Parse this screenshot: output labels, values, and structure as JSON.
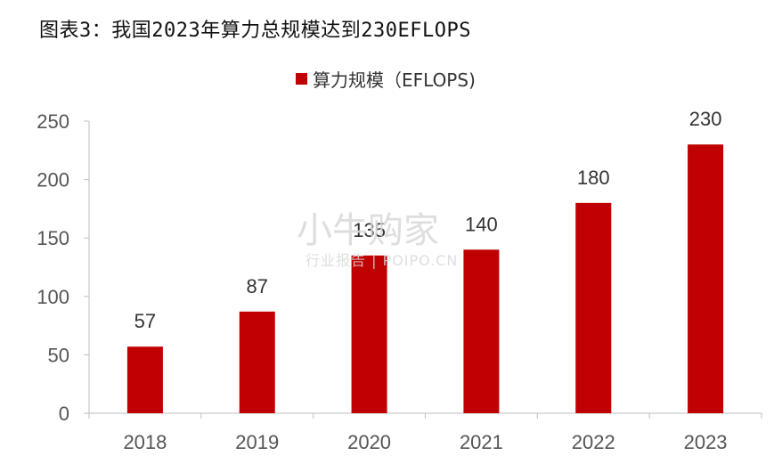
{
  "figure_title": "图表3：我国2023年算力总规模达到230EFLOPS",
  "watermark": {
    "main": "小牛购家",
    "sub": "行业报告 | POIPO.CN"
  },
  "colors": {
    "bar": "#C00000",
    "axis": "#bfbfbf"
  },
  "chart_data": {
    "type": "bar",
    "categories": [
      "2018",
      "2019",
      "2020",
      "2021",
      "2022",
      "2023"
    ],
    "series": [
      {
        "name": "算力规模（EFLOPS)",
        "values": [
          57,
          87,
          135,
          140,
          180,
          230
        ]
      }
    ],
    "ylim": [
      0,
      250
    ],
    "yticks": [
      "0",
      "50",
      "100",
      "150",
      "200",
      "250"
    ],
    "legend": "top-center",
    "grid": false
  }
}
